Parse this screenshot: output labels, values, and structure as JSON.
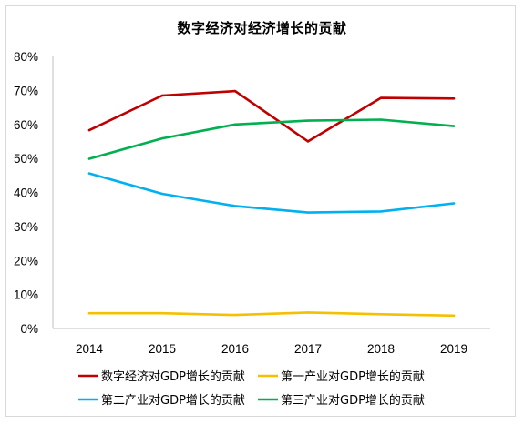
{
  "chart_data": {
    "type": "line",
    "title": "数字经济对经济增长的贡献",
    "xlabel": "",
    "ylabel": "",
    "categories": [
      "2014",
      "2015",
      "2016",
      "2017",
      "2018",
      "2019"
    ],
    "ylim": [
      0,
      80
    ],
    "yticks": [
      "0%",
      "10%",
      "20%",
      "30%",
      "40%",
      "50%",
      "60%",
      "70%",
      "80%"
    ],
    "grid": false,
    "legend_position": "bottom",
    "series": [
      {
        "name": "数字经济对GDP增长的贡献",
        "color": "#c00000",
        "values": [
          58.3,
          68.5,
          69.8,
          55.0,
          67.8,
          67.6
        ]
      },
      {
        "name": "第一产业对GDP增长的贡献",
        "color": "#f5c000",
        "values": [
          4.5,
          4.5,
          4.0,
          4.7,
          4.2,
          3.8
        ]
      },
      {
        "name": "第二产业对GDP增长的贡献",
        "color": "#00b0f0",
        "values": [
          45.6,
          39.6,
          36.0,
          34.1,
          34.4,
          36.8
        ]
      },
      {
        "name": "第三产业对GDP增长的贡献",
        "color": "#00b050",
        "values": [
          49.9,
          55.9,
          60.0,
          61.1,
          61.4,
          59.5
        ]
      }
    ]
  }
}
